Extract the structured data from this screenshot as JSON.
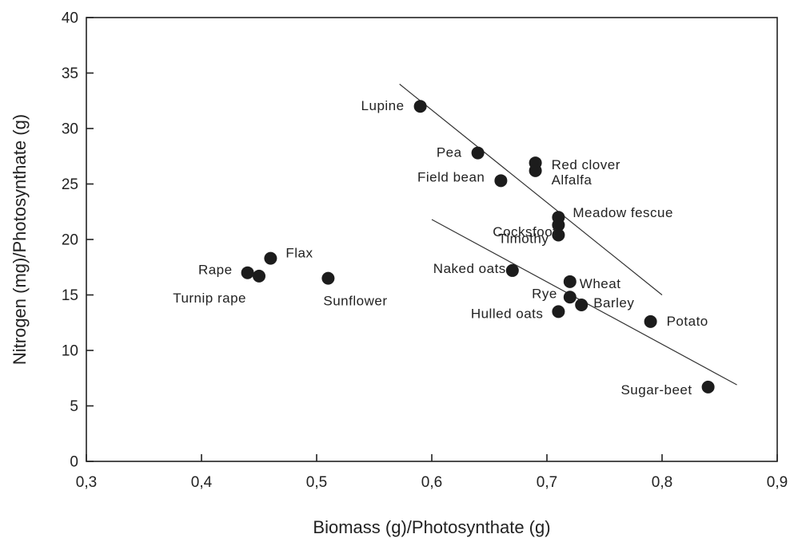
{
  "chart_data": {
    "type": "scatter",
    "xlabel": "Biomass (g)/Photosynthate (g)",
    "ylabel": "Nitrogen (mg)/Photosynthate (g)",
    "xlim": [
      0.3,
      0.9
    ],
    "ylim": [
      0,
      40
    ],
    "xticks": [
      0.3,
      0.4,
      0.5,
      0.6,
      0.7,
      0.8,
      0.9
    ],
    "xtick_labels": [
      "0,3",
      "0,4",
      "0,5",
      "0,6",
      "0,7",
      "0,8",
      "0,9"
    ],
    "yticks": [
      0,
      5,
      10,
      15,
      20,
      25,
      30,
      35,
      40
    ],
    "ytick_labels": [
      "0",
      "5",
      "10",
      "15",
      "20",
      "25",
      "30",
      "35",
      "40"
    ],
    "grid": false,
    "points": [
      {
        "label": "Lupine",
        "x": 0.59,
        "y": 32.0
      },
      {
        "label": "Pea",
        "x": 0.64,
        "y": 27.8
      },
      {
        "label": "Red clover",
        "x": 0.69,
        "y": 26.9
      },
      {
        "label": "Alfalfa",
        "x": 0.69,
        "y": 26.2
      },
      {
        "label": "Field bean",
        "x": 0.66,
        "y": 25.3
      },
      {
        "label": "Meadow fescue",
        "x": 0.71,
        "y": 22.0
      },
      {
        "label": "Cocksfoot",
        "x": 0.71,
        "y": 21.3
      },
      {
        "label": "Timothy",
        "x": 0.71,
        "y": 20.4
      },
      {
        "label": "Flax",
        "x": 0.46,
        "y": 18.3
      },
      {
        "label": "Naked oats",
        "x": 0.67,
        "y": 17.2
      },
      {
        "label": "Rape",
        "x": 0.44,
        "y": 17.0
      },
      {
        "label": "Turnip rape",
        "x": 0.45,
        "y": 16.7
      },
      {
        "label": "Sunflower",
        "x": 0.51,
        "y": 16.5
      },
      {
        "label": "Wheat",
        "x": 0.72,
        "y": 16.2
      },
      {
        "label": "Rye",
        "x": 0.72,
        "y": 14.8
      },
      {
        "label": "Barley",
        "x": 0.73,
        "y": 14.1
      },
      {
        "label": "Hulled oats",
        "x": 0.71,
        "y": 13.5
      },
      {
        "label": "Potato",
        "x": 0.79,
        "y": 12.6
      },
      {
        "label": "Sugar-beet",
        "x": 0.84,
        "y": 6.7
      }
    ],
    "trend_lines": [
      {
        "x": [
          0.572,
          0.8
        ],
        "y": [
          34.0,
          15.0
        ]
      },
      {
        "x": [
          0.6,
          0.865
        ],
        "y": [
          21.8,
          6.9
        ]
      }
    ]
  }
}
